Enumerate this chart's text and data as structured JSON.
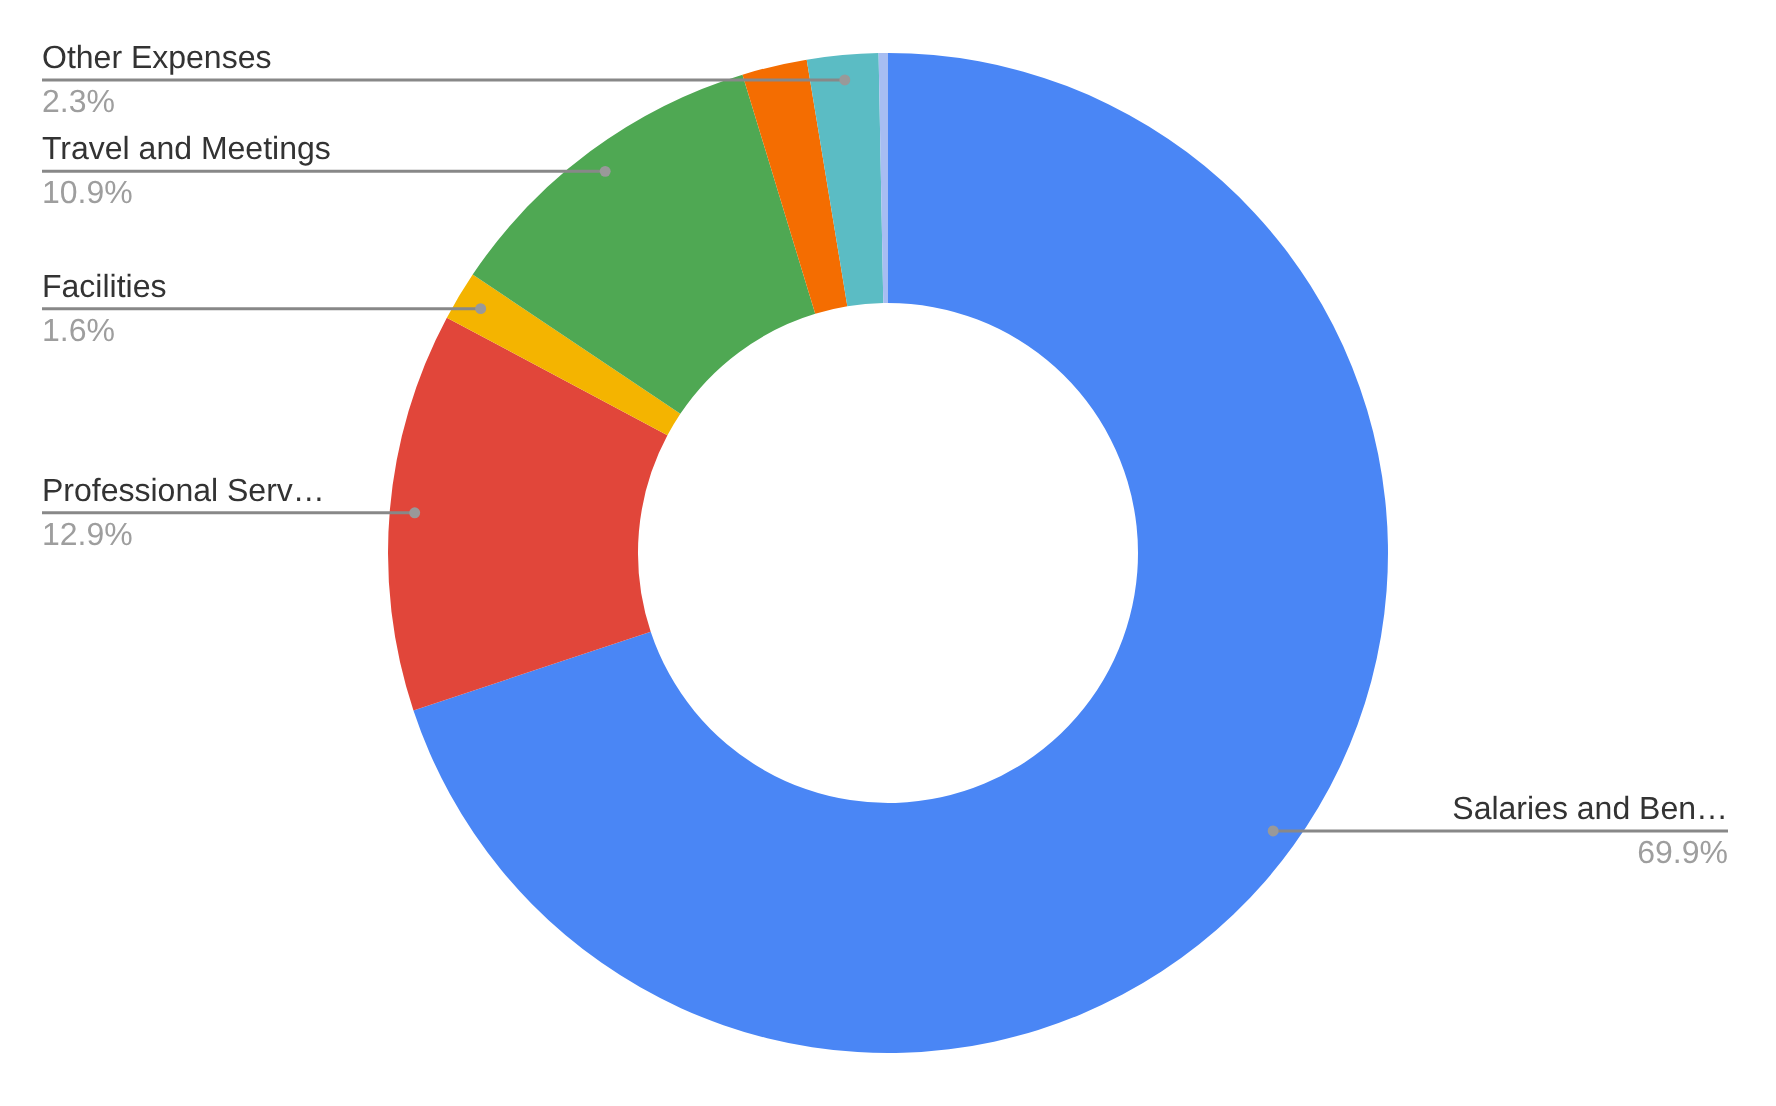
{
  "chart_data": {
    "type": "donut",
    "categories": [
      "Salaries and Ben…",
      "Professional Serv…",
      "Facilities",
      "Travel and Meetings",
      null,
      "Other Expenses",
      null
    ],
    "values": [
      69.9,
      12.9,
      1.6,
      10.9,
      2.1,
      2.3,
      0.3
    ],
    "colors": [
      "#4a86f5",
      "#e1463a",
      "#f4b400",
      "#4fa853",
      "#f46d01",
      "#5bbcc4",
      "#a7bdf2"
    ],
    "value_labels": [
      "69.9%",
      "12.9%",
      "1.6%",
      "10.9%",
      null,
      "2.3%",
      null
    ]
  }
}
